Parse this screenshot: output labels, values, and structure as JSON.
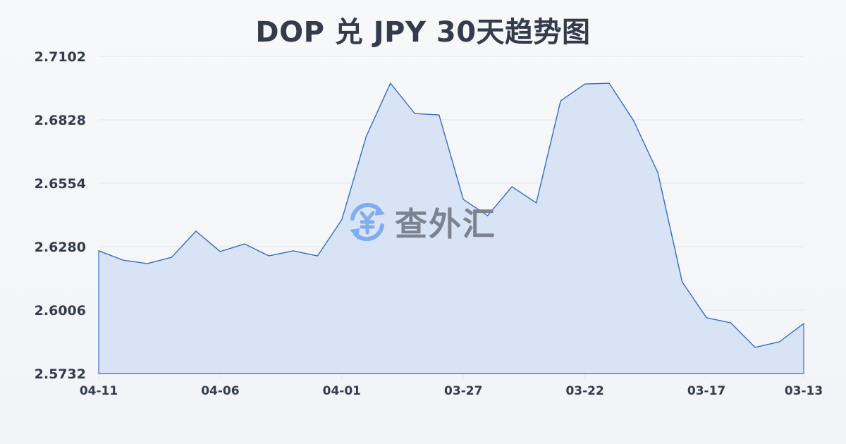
{
  "title": "DOP 兑 JPY 30天趋势图",
  "watermark": {
    "text": "查外汇",
    "icon": "yen-exchange-icon"
  },
  "colors": {
    "line": "#3a6cc4",
    "fill": "#d6e1f5",
    "grid": "#e3e6ea",
    "text": "#343c4c",
    "watermark_icon": "#7fadf0",
    "watermark_text": "#7c8290"
  },
  "chart_data": {
    "type": "area",
    "title": "DOP 兑 JPY 30天趋势图",
    "xlabel": "",
    "ylabel": "",
    "ylim": [
      2.5732,
      2.7102
    ],
    "yticks": [
      "2.7102",
      "2.6828",
      "2.6554",
      "2.6280",
      "2.6006",
      "2.5732"
    ],
    "xticks": [
      "04-11",
      "04-06",
      "04-01",
      "03-27",
      "03-22",
      "03-17",
      "03-13"
    ],
    "xtick_index": [
      0,
      5,
      10,
      15,
      20,
      25,
      29
    ],
    "grid": true,
    "legend": null,
    "x": [
      "04-11",
      "04-10",
      "04-09",
      "04-08",
      "04-07",
      "04-06",
      "04-05",
      "04-04",
      "04-03",
      "04-02",
      "04-01",
      "03-31",
      "03-30",
      "03-29",
      "03-28",
      "03-27",
      "03-26",
      "03-25",
      "03-24",
      "03-23",
      "03-22",
      "03-21",
      "03-20",
      "03-19",
      "03-18",
      "03-17",
      "03-16",
      "03-15",
      "03-14",
      "03-13"
    ],
    "series": [
      {
        "name": "DOP/JPY",
        "values": [
          2.6262,
          2.6222,
          2.6207,
          2.6234,
          2.6347,
          2.6259,
          2.6292,
          2.624,
          2.6262,
          2.624,
          2.6396,
          2.6755,
          2.6986,
          2.6855,
          2.6849,
          2.6484,
          2.6414,
          2.6539,
          2.6469,
          2.691,
          2.6983,
          2.6986,
          2.6825,
          2.66,
          2.6128,
          2.5973,
          2.5951,
          2.5845,
          2.5869,
          2.5948
        ]
      }
    ]
  }
}
